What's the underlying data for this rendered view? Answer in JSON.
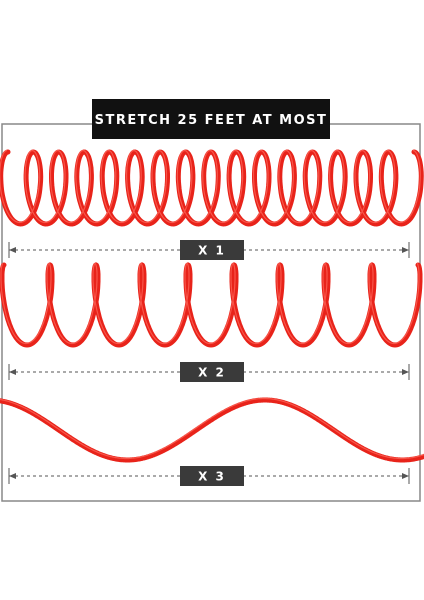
{
  "header": {
    "title": "STRETCH 25 FEET AT MOST"
  },
  "measures": [
    {
      "label": "X 1"
    },
    {
      "label": "X 2"
    },
    {
      "label": "X 3"
    }
  ]
}
